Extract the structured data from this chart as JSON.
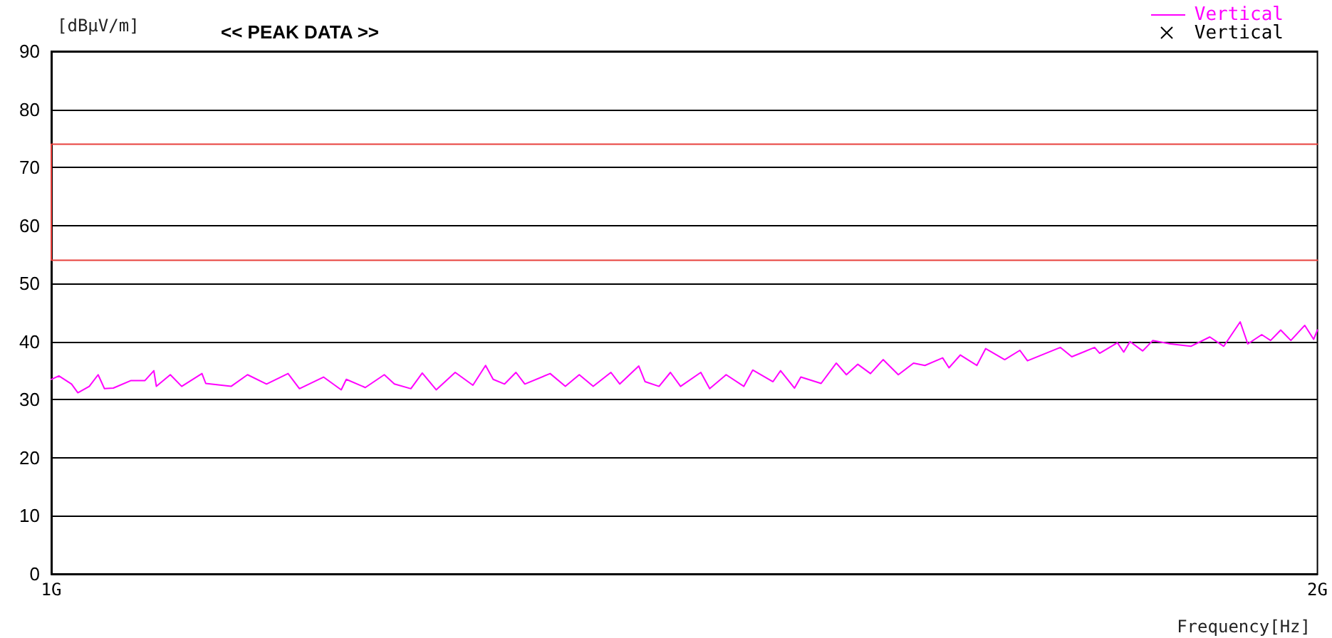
{
  "chart_data": {
    "type": "line",
    "title": "<< PEAK DATA >>",
    "xlabel": "Frequency[Hz]",
    "ylabel": "[dBμV/m]",
    "xlim": [
      1,
      2
    ],
    "xticks": [
      {
        "value": 1,
        "label": "1G"
      },
      {
        "value": 2,
        "label": "2G"
      }
    ],
    "ylim": [
      0,
      90
    ],
    "yticks": [
      0,
      10,
      20,
      30,
      40,
      50,
      60,
      70,
      80,
      90
    ],
    "grid": "y",
    "legend": "top right",
    "marker": "none",
    "line_style": "solid",
    "series": [
      {
        "color": "#e8403c",
        "x": [
          2,
          1,
          1,
          2
        ],
        "values": [
          74,
          74,
          54,
          54
        ]
      },
      {
        "name": "Vertical",
        "color": "#ff00ff",
        "x": [
          1.0,
          1.006,
          1.016,
          1.021,
          1.03,
          1.037,
          1.042,
          1.049,
          1.063,
          1.074,
          1.081,
          1.083,
          1.094,
          1.103,
          1.119,
          1.122,
          1.142,
          1.155,
          1.17,
          1.187,
          1.196,
          1.215,
          1.229,
          1.233,
          1.248,
          1.263,
          1.271,
          1.284,
          1.293,
          1.304,
          1.319,
          1.333,
          1.343,
          1.349,
          1.358,
          1.367,
          1.374,
          1.394,
          1.406,
          1.417,
          1.428,
          1.442,
          1.449,
          1.464,
          1.469,
          1.48,
          1.489,
          1.497,
          1.513,
          1.52,
          1.533,
          1.547,
          1.554,
          1.57,
          1.576,
          1.587,
          1.592,
          1.608,
          1.62,
          1.628,
          1.637,
          1.647,
          1.657,
          1.669,
          1.681,
          1.69,
          1.704,
          1.709,
          1.718,
          1.731,
          1.738,
          1.753,
          1.765,
          1.771,
          1.797,
          1.806,
          1.824,
          1.828,
          1.842,
          1.847,
          1.852,
          1.862,
          1.87,
          1.884,
          1.9,
          1.915,
          1.926,
          1.939,
          1.945,
          1.956,
          1.963,
          1.971,
          1.979,
          1.99,
          1.997,
          2.0
        ],
        "values": [
          33.5,
          34.1,
          32.7,
          31.2,
          32.3,
          34.3,
          31.9,
          32.0,
          33.3,
          33.3,
          35.0,
          32.3,
          34.3,
          32.3,
          34.5,
          32.8,
          32.3,
          34.3,
          32.7,
          34.5,
          31.9,
          33.9,
          31.7,
          33.5,
          32.1,
          34.3,
          32.7,
          31.9,
          34.6,
          31.7,
          34.7,
          32.5,
          35.9,
          33.5,
          32.7,
          34.7,
          32.7,
          34.5,
          32.3,
          34.3,
          32.3,
          34.7,
          32.7,
          35.8,
          33.1,
          32.3,
          34.7,
          32.3,
          34.7,
          31.9,
          34.3,
          32.3,
          35.1,
          33.1,
          35.0,
          32.0,
          33.9,
          32.8,
          36.3,
          34.3,
          36.1,
          34.5,
          36.9,
          34.3,
          36.3,
          35.9,
          37.2,
          35.5,
          37.7,
          35.9,
          38.8,
          36.9,
          38.5,
          36.7,
          39.0,
          37.4,
          39.0,
          38.0,
          39.8,
          38.2,
          40.0,
          38.4,
          40.2,
          39.6,
          39.2,
          40.8,
          39.2,
          43.4,
          39.6,
          41.2,
          40.2,
          42.0,
          40.2,
          42.8,
          40.4,
          42.0
        ]
      },
      {
        "name": "Vertical",
        "type": "scatter",
        "marker": "cross",
        "color": "#000000"
      }
    ]
  }
}
